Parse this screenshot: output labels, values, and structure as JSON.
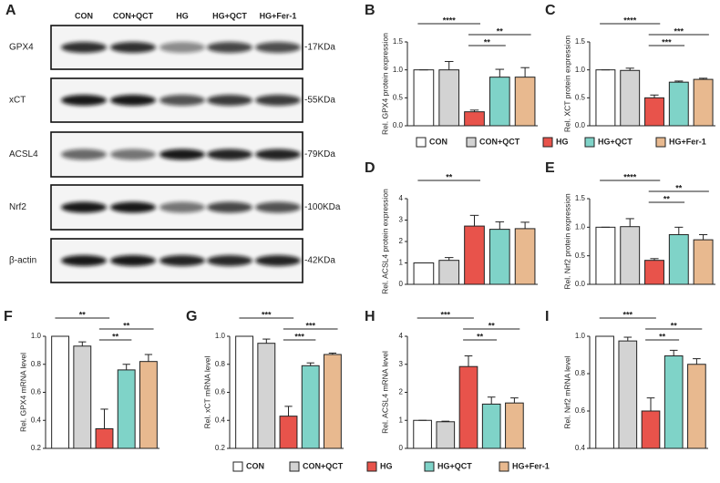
{
  "blot": {
    "panel": "A",
    "lanes": [
      "CON",
      "CON+QCT",
      "HG",
      "HG+QCT",
      "HG+Fer-1"
    ],
    "rows": [
      {
        "protein": "GPX4",
        "size": "-17KDa"
      },
      {
        "protein": "xCT",
        "size": "-55KDa"
      },
      {
        "protein": "ACSL4",
        "size": "-79KDa"
      },
      {
        "protein": "Nrf2",
        "size": "-100KDa"
      },
      {
        "protein": "β-actin",
        "size": "-42KDa"
      }
    ]
  },
  "legend": {
    "labels": [
      "CON",
      "CON+QCT",
      "HG",
      "HG+QCT",
      "HG+Fer-1"
    ],
    "colors": [
      "#ffffff",
      "#d3d3d3",
      "#e8534b",
      "#7fd3c8",
      "#e8b98f"
    ]
  },
  "chart_data": [
    {
      "type": "bar",
      "panel": "B",
      "ylabel": "Rel. GPX4 protein expression",
      "values": [
        1.0,
        1.0,
        0.25,
        0.87,
        0.87
      ],
      "errors": [
        0,
        0.15,
        0.03,
        0.14,
        0.17
      ],
      "ylim": [
        0,
        1.5
      ],
      "yticks": [
        {
          "value": 0,
          "label": "0.0"
        },
        0.5,
        {
          "value": 1,
          "label": "1.0"
        },
        1.5
      ],
      "sig": [
        {
          "from": 0,
          "to": 2,
          "label": "****"
        },
        {
          "from": 2,
          "to": 4,
          "label": "**"
        },
        {
          "from": 2,
          "to": 3,
          "label": "**"
        }
      ]
    },
    {
      "type": "bar",
      "panel": "C",
      "ylabel": "Rel. XCT protein expression",
      "values": [
        1.0,
        0.99,
        0.5,
        0.78,
        0.83
      ],
      "errors": [
        0,
        0.04,
        0.05,
        0.02,
        0.02
      ],
      "ylim": [
        0,
        1.5
      ],
      "yticks": [
        {
          "value": 0,
          "label": "0.0"
        },
        0.5,
        {
          "value": 1,
          "label": "1.0"
        },
        1.5
      ],
      "sig": [
        {
          "from": 0,
          "to": 2,
          "label": "****"
        },
        {
          "from": 2,
          "to": 4,
          "label": "***"
        },
        {
          "from": 2,
          "to": 3,
          "label": "***"
        }
      ]
    },
    {
      "type": "bar",
      "panel": "D",
      "ylabel": "Rel. ACSL4 protein expression",
      "values": [
        1.0,
        1.12,
        2.72,
        2.57,
        2.6
      ],
      "errors": [
        0,
        0.13,
        0.5,
        0.35,
        0.3
      ],
      "ylim": [
        0,
        4
      ],
      "yticks": [
        0,
        1,
        2,
        3,
        4
      ],
      "sig": [
        {
          "from": 0,
          "to": 2,
          "label": "**"
        }
      ]
    },
    {
      "type": "bar",
      "panel": "E",
      "ylabel": "Rel. Nrf2 protein expression",
      "values": [
        1.0,
        1.01,
        0.42,
        0.87,
        0.78
      ],
      "errors": [
        0,
        0.14,
        0.03,
        0.13,
        0.09
      ],
      "ylim": [
        0,
        1.5
      ],
      "yticks": [
        {
          "value": 0,
          "label": "0.0"
        },
        0.5,
        {
          "value": 1,
          "label": "1.0"
        },
        1.5
      ],
      "sig": [
        {
          "from": 0,
          "to": 2,
          "label": "****"
        },
        {
          "from": 2,
          "to": 4,
          "label": "**"
        },
        {
          "from": 2,
          "to": 3,
          "label": "**"
        }
      ]
    },
    {
      "type": "bar",
      "panel": "F",
      "ylabel": "Rel. GPX4 mRNA level",
      "values": [
        1.0,
        0.93,
        0.34,
        0.76,
        0.82
      ],
      "errors": [
        0,
        0.03,
        0.14,
        0.04,
        0.05
      ],
      "ylim": [
        0.2,
        1
      ],
      "yticks": [
        0.2,
        0.4,
        0.6,
        0.8,
        {
          "value": 1,
          "label": "1.0"
        }
      ],
      "sig": [
        {
          "from": 0,
          "to": 2,
          "label": "**"
        },
        {
          "from": 2,
          "to": 4,
          "label": "**"
        },
        {
          "from": 2,
          "to": 3,
          "label": "**"
        }
      ]
    },
    {
      "type": "bar",
      "panel": "G",
      "ylabel": "Rel. xCT mRNA level",
      "values": [
        1.0,
        0.95,
        0.43,
        0.79,
        0.87
      ],
      "errors": [
        0,
        0.03,
        0.07,
        0.02,
        0.01
      ],
      "ylim": [
        0.2,
        1
      ],
      "yticks": [
        0.2,
        0.4,
        0.6,
        0.8,
        {
          "value": 1,
          "label": "1.0"
        }
      ],
      "sig": [
        {
          "from": 0,
          "to": 2,
          "label": "***"
        },
        {
          "from": 2,
          "to": 4,
          "label": "***"
        },
        {
          "from": 2,
          "to": 3,
          "label": "***"
        }
      ]
    },
    {
      "type": "bar",
      "panel": "H",
      "ylabel": "Rel. ACSL4 mRNA level",
      "values": [
        1.0,
        0.95,
        2.92,
        1.58,
        1.62
      ],
      "errors": [
        0,
        0.02,
        0.38,
        0.25,
        0.18
      ],
      "ylim": [
        0,
        4
      ],
      "yticks": [
        0,
        1,
        2,
        3,
        4
      ],
      "sig": [
        {
          "from": 0,
          "to": 2,
          "label": "***"
        },
        {
          "from": 2,
          "to": 4,
          "label": "**"
        },
        {
          "from": 2,
          "to": 3,
          "label": "**"
        }
      ]
    },
    {
      "type": "bar",
      "panel": "I",
      "ylabel": "Rel. Nrf2 mRNA level",
      "values": [
        1.0,
        0.975,
        0.6,
        0.895,
        0.85
      ],
      "errors": [
        0,
        0.02,
        0.07,
        0.03,
        0.03
      ],
      "ylim": [
        0.4,
        1
      ],
      "yticks": [
        0.4,
        0.6,
        0.8,
        {
          "value": 1,
          "label": "1.0"
        }
      ],
      "sig": [
        {
          "from": 0,
          "to": 2,
          "label": "***"
        },
        {
          "from": 2,
          "to": 4,
          "label": "**"
        },
        {
          "from": 2,
          "to": 3,
          "label": "**"
        }
      ]
    }
  ]
}
